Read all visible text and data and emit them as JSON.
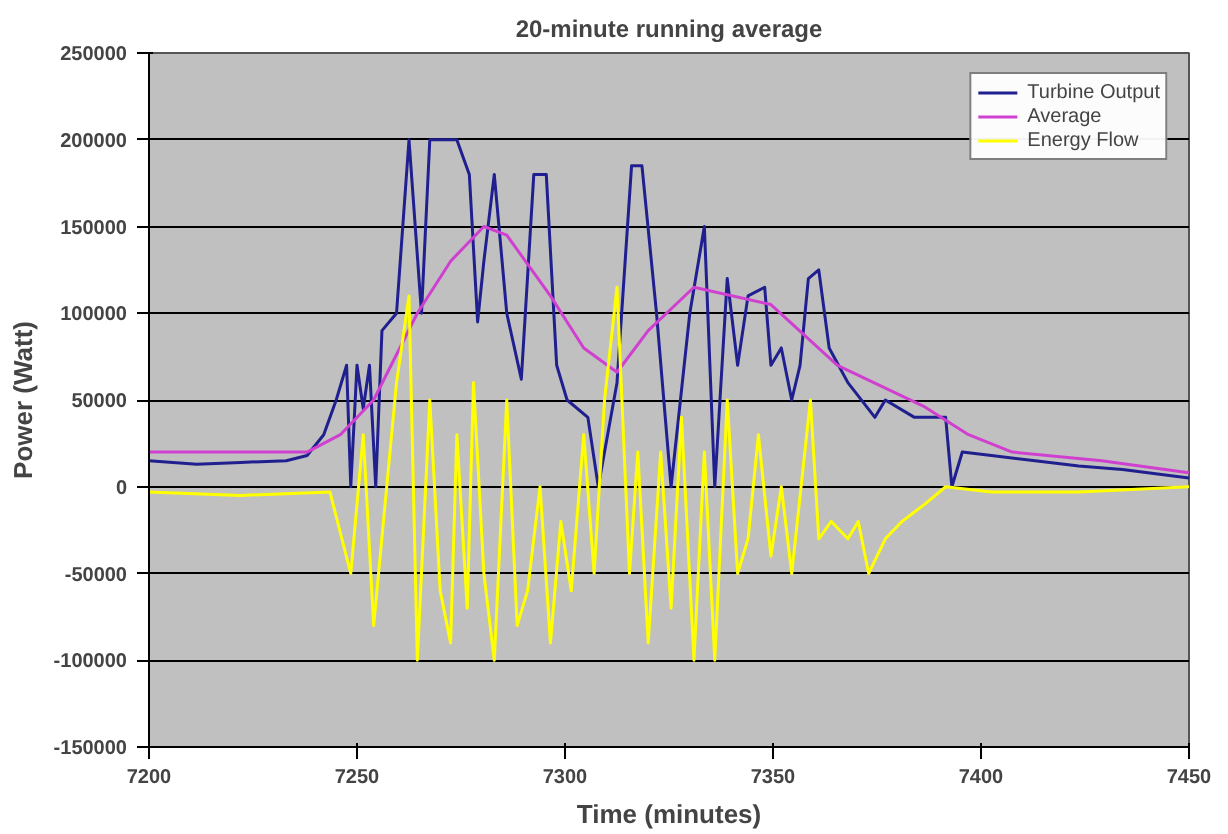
{
  "chart_data": {
    "type": "line",
    "title": "20-minute running average",
    "xlabel": "Time (minutes)",
    "ylabel": "Power (Watt)",
    "xlim": [
      7200,
      7450
    ],
    "xticks": [
      7200,
      7250,
      7300,
      7350,
      7400,
      7450
    ],
    "ylim": [
      -150000,
      250000
    ],
    "yticks": [
      -150000,
      -100000,
      -50000,
      0,
      50000,
      100000,
      150000,
      200000,
      250000
    ],
    "grid": "y",
    "legend": "top right",
    "marker": "none",
    "line_style": "solid",
    "series": [
      {
        "name": "Turbine Output",
        "color": "#1f1f8f",
        "x": [
          7200,
          7211.5,
          7222,
          7233,
          7238,
          7242,
          7245,
          7247.5,
          7248.5,
          7250,
          7251.5,
          7253,
          7254.5,
          7256,
          7259.5,
          7262.5,
          7265.5,
          7267.5,
          7271.5,
          7274,
          7277,
          7279,
          7280.5,
          7283,
          7286,
          7289.5,
          7292.5,
          7295.5,
          7298,
          7300.5,
          7305.5,
          7308,
          7312.5,
          7316,
          7318.5,
          7322,
          7325.5,
          7330,
          7333.5,
          7336,
          7339,
          7341.5,
          7344,
          7348,
          7349.5,
          7352,
          7354.5,
          7356.5,
          7358.5,
          7361,
          7363.5,
          7368,
          7374.5,
          7377,
          7384,
          7391.5,
          7393,
          7395.5,
          7402.5,
          7413,
          7423.5,
          7434,
          7450
        ],
        "values": [
          15000,
          13000,
          14000,
          15000,
          18000,
          30000,
          50000,
          70000,
          0,
          70000,
          45000,
          70000,
          0,
          90000,
          100000,
          200000,
          100000,
          200000,
          200000,
          200000,
          180000,
          95000,
          130000,
          180000,
          100000,
          62000,
          180000,
          180000,
          70000,
          50000,
          40000,
          0,
          60000,
          185000,
          185000,
          100000,
          0,
          100000,
          150000,
          0,
          120000,
          70000,
          110000,
          115000,
          70000,
          80000,
          50000,
          70000,
          120000,
          125000,
          80000,
          60000,
          40000,
          50000,
          40000,
          40000,
          0,
          20000,
          18000,
          15000,
          12000,
          10000,
          5000
        ]
      },
      {
        "name": "Average",
        "color": "#d040d0",
        "x": [
          7200,
          7238,
          7246,
          7254,
          7264.5,
          7272.5,
          7280.5,
          7286,
          7296.5,
          7304.5,
          7312.5,
          7320,
          7331,
          7349.5,
          7365.5,
          7386.5,
          7397,
          7407.5,
          7429,
          7450
        ],
        "values": [
          20000,
          20000,
          30000,
          50000,
          100000,
          130000,
          150000,
          145000,
          110000,
          80000,
          66000,
          90000,
          115000,
          105000,
          70000,
          46000,
          30000,
          20000,
          15000,
          8000
        ]
      },
      {
        "name": "Energy Flow",
        "color": "#ffff00",
        "x": [
          7200,
          7222,
          7243.5,
          7248.5,
          7251.5,
          7254,
          7259.5,
          7262.5,
          7264.5,
          7267.5,
          7270,
          7272.5,
          7274,
          7276.5,
          7278,
          7280.5,
          7283,
          7286,
          7288.5,
          7291,
          7294,
          7296.5,
          7299,
          7301.5,
          7304.5,
          7307,
          7309.5,
          7312.5,
          7315.5,
          7317.5,
          7320,
          7323,
          7325.5,
          7328,
          7331,
          7333.5,
          7336,
          7339,
          7341.5,
          7344,
          7346.5,
          7349.5,
          7352,
          7354.5,
          7359,
          7361,
          7364,
          7368,
          7370.5,
          7373,
          7377,
          7381,
          7386.5,
          7391.5,
          7402.5,
          7423.5,
          7450
        ],
        "values": [
          -3000,
          -5000,
          -3000,
          -50000,
          30000,
          -80000,
          60000,
          110000,
          -100000,
          50000,
          -60000,
          -90000,
          30000,
          -70000,
          60000,
          -50000,
          -100000,
          50000,
          -80000,
          -60000,
          0,
          -90000,
          -20000,
          -60000,
          30000,
          -50000,
          50000,
          115000,
          -50000,
          20000,
          -90000,
          20000,
          -70000,
          40000,
          -100000,
          20000,
          -100000,
          50000,
          -50000,
          -30000,
          30000,
          -40000,
          0,
          -50000,
          50000,
          -30000,
          -20000,
          -30000,
          -20000,
          -50000,
          -30000,
          -20000,
          -10000,
          0,
          -3000,
          -3000,
          0
        ]
      }
    ]
  }
}
